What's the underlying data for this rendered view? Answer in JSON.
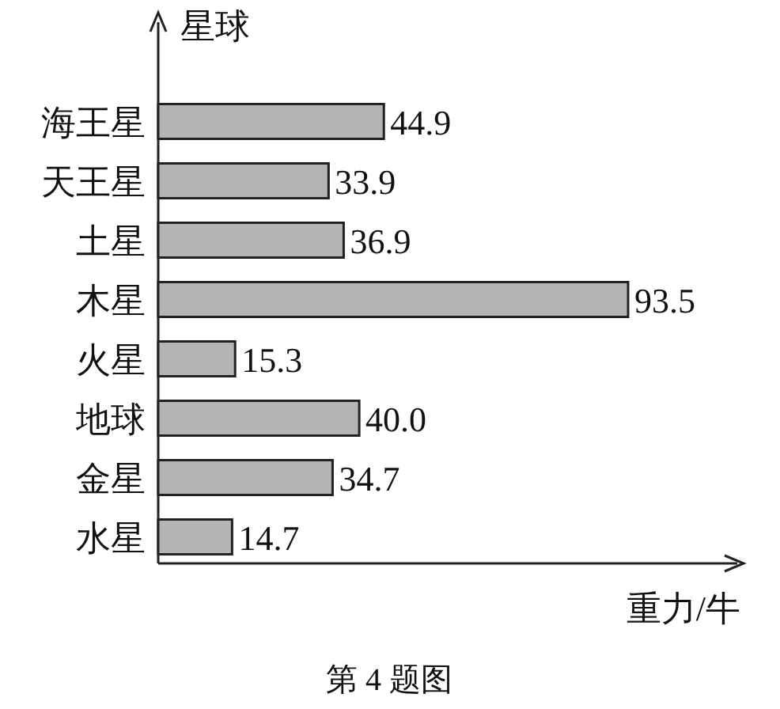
{
  "chart_data": {
    "type": "bar",
    "orientation": "horizontal",
    "ylabel": "星球",
    "xlabel": "重力/牛",
    "categories": [
      "海王星",
      "天王星",
      "土星",
      "木星",
      "火星",
      "地球",
      "金星",
      "水星"
    ],
    "values": [
      44.9,
      33.9,
      36.9,
      93.5,
      15.3,
      40.0,
      34.7,
      14.7
    ],
    "value_labels": [
      "44.9",
      "33.9",
      "36.9",
      "93.5",
      "15.3",
      "40.0",
      "34.7",
      "14.7"
    ],
    "color": "#b4b4b4",
    "annotations": [
      "第 4 题图"
    ]
  }
}
